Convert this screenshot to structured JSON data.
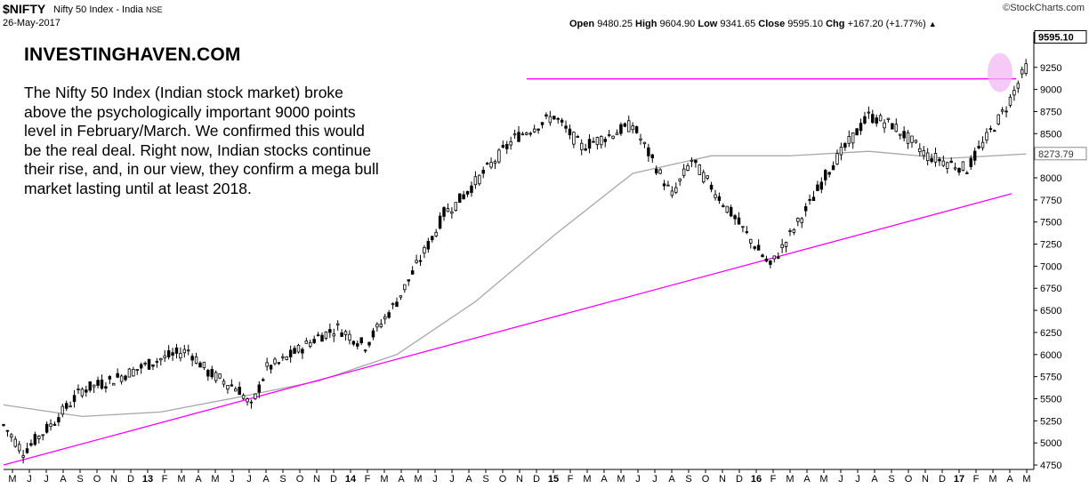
{
  "header": {
    "symbol": "$NIFTY",
    "description": "Nifty 50 Index - India",
    "exchange": "NSE",
    "date": "26-May-2017",
    "credit": "©StockCharts.com",
    "open_label": "Open",
    "open": "9480.25",
    "high_label": "High",
    "high": "9604.90",
    "low_label": "Low",
    "low": "9341.65",
    "close_label": "Close",
    "close": "9595.10",
    "chg_label": "Chg",
    "chg": "+167.20 (+1.77%)",
    "chg_arrow": "▲"
  },
  "annotation": {
    "brand": "INVESTINGHAVEN.COM",
    "commentary": "The Nifty 50 Index (Indian stock market) broke above the psychologically important 9000 points level in February/March. We confirmed this would be the real deal. Right now, Indian stocks continue their rise, and, in our view, they confirm a mega bull market lasting until at least 2018."
  },
  "colors": {
    "candle": "#000000",
    "moving_average": "#a8a8a8",
    "trendline": "#ff00ff",
    "highlight_fill": "#f3b8f3"
  },
  "chart_data": {
    "type": "line",
    "style": "candlestick",
    "grid": false,
    "ylim": [
      4700,
      9650
    ],
    "y_axis_side": "right",
    "y_ticks": [
      4750,
      5000,
      5250,
      5500,
      5750,
      6000,
      6250,
      6500,
      6750,
      7000,
      7250,
      7500,
      7750,
      8000,
      8250,
      8500,
      8750,
      9000,
      9250
    ],
    "x_tick_labels": [
      "M",
      "J",
      "J",
      "A",
      "S",
      "O",
      "N",
      "D",
      "13",
      "F",
      "M",
      "A",
      "M",
      "J",
      "J",
      "A",
      "S",
      "O",
      "N",
      "D",
      "14",
      "F",
      "M",
      "A",
      "M",
      "J",
      "J",
      "A",
      "S",
      "O",
      "N",
      "D",
      "15",
      "F",
      "M",
      "A",
      "M",
      "J",
      "J",
      "A",
      "S",
      "O",
      "N",
      "D",
      "16",
      "F",
      "M",
      "A",
      "M",
      "J",
      "J",
      "A",
      "S",
      "O",
      "N",
      "D",
      "17",
      "F",
      "M",
      "A",
      "M"
    ],
    "last_close_label": "9595.10",
    "moving_average_label": "8273.79",
    "key_points": {
      "x": [
        0,
        5,
        12,
        20,
        27,
        40,
        47,
        52,
        60,
        63,
        67,
        70,
        75,
        80,
        85,
        92,
        100,
        110,
        112,
        115,
        120,
        125,
        130,
        140,
        147,
        155,
        160,
        170,
        175,
        180,
        185,
        195,
        205,
        210,
        220,
        226,
        235,
        245,
        255,
        260
      ],
      "close": [
        5200,
        4900,
        5200,
        5600,
        5700,
        5950,
        6050,
        5800,
        5600,
        5400,
        5850,
        5900,
        6050,
        6200,
        6300,
        6100,
        6600,
        7400,
        7600,
        7700,
        7950,
        8200,
        8450,
        8700,
        8350,
        8500,
        8600,
        7800,
        8200,
        7900,
        7600,
        7000,
        7700,
        8100,
        8700,
        8600,
        8250,
        8100,
        8800,
        9250
      ]
    },
    "moving_average_points": {
      "x": [
        0,
        20,
        40,
        60,
        80,
        100,
        120,
        140,
        160,
        180,
        200,
        220,
        240,
        260
      ],
      "value": [
        5430,
        5300,
        5350,
        5520,
        5700,
        6000,
        6600,
        7350,
        8050,
        8250,
        8250,
        8300,
        8220,
        8270
      ]
    },
    "series": [
      {
        "name": "",
        "y_at_start": 4750,
        "y_at_end": 7820
      },
      {
        "name": "",
        "y": 9120
      }
    ]
  }
}
